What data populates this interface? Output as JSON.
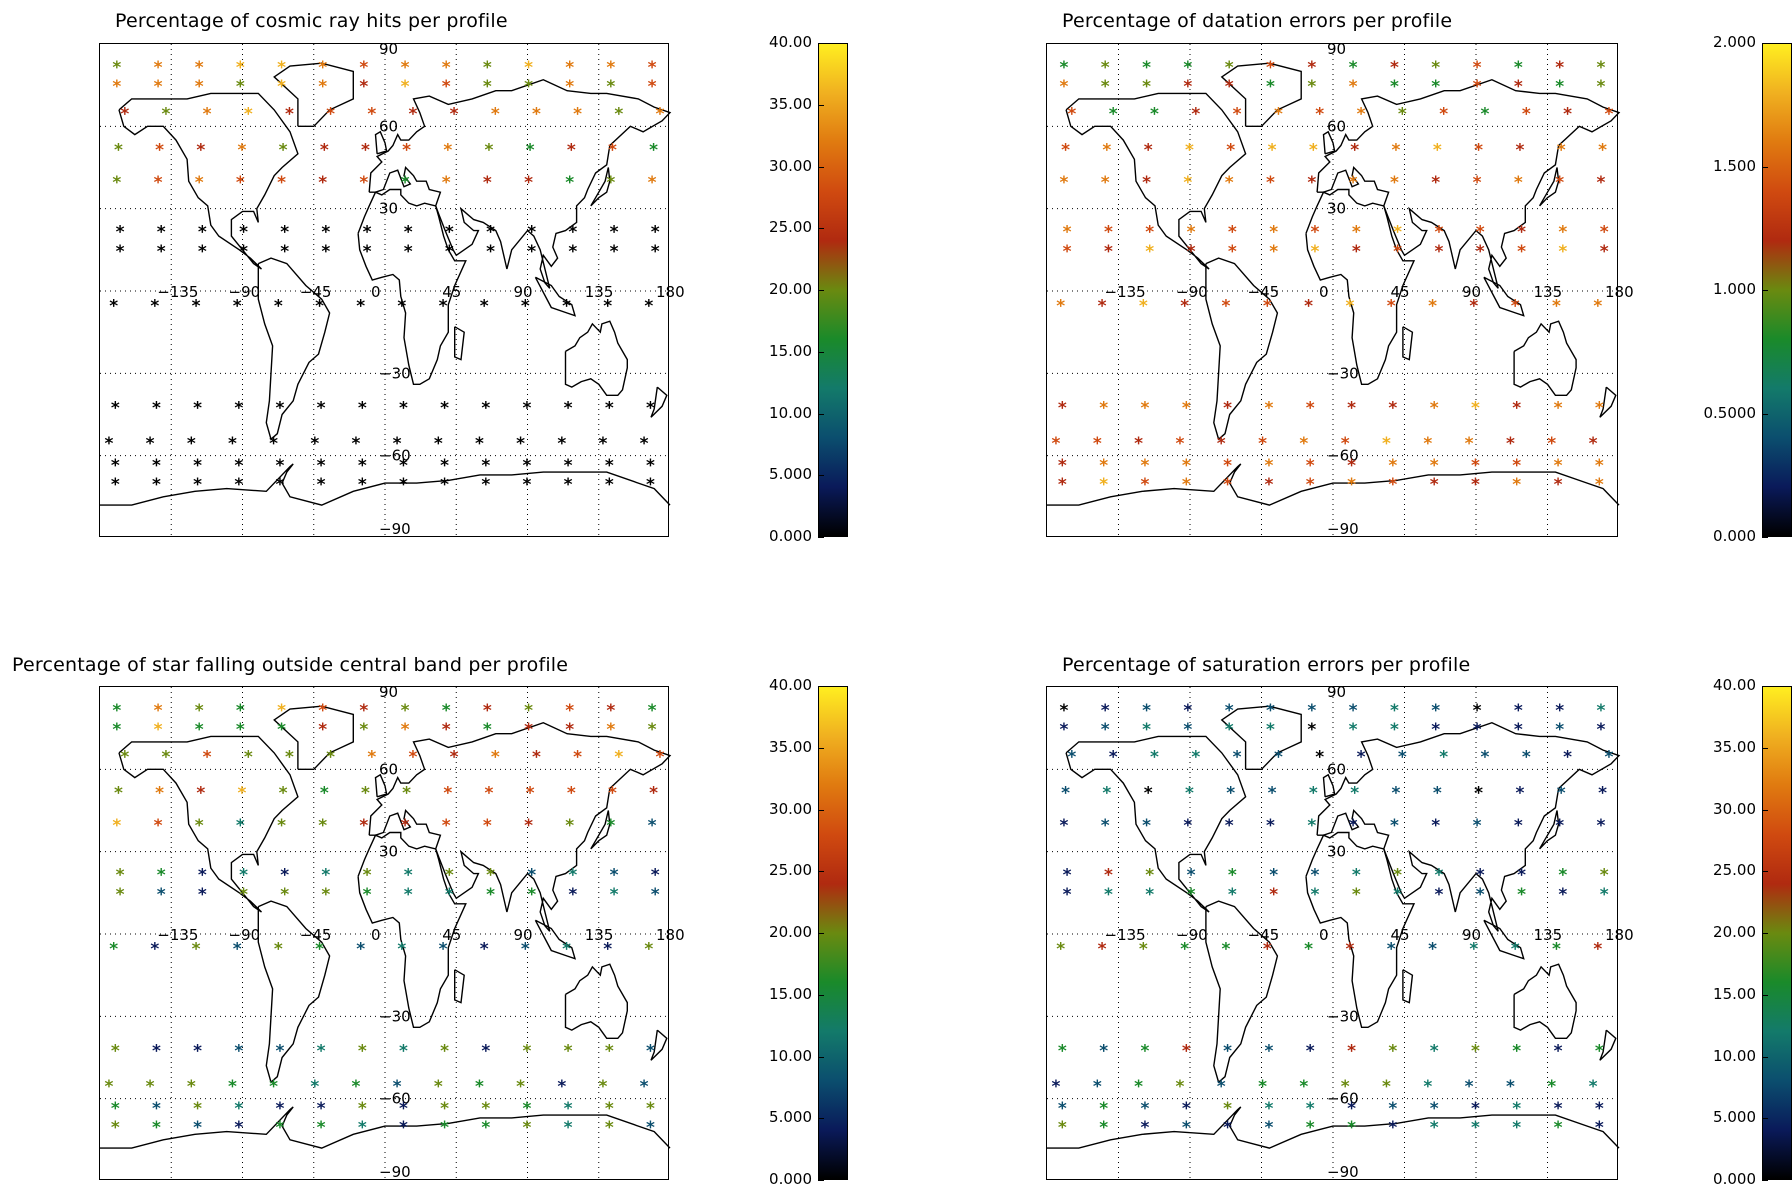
{
  "panels": [
    {
      "id": "cosmic",
      "title": "Percentage of cosmic ray hits per profile",
      "colorbar_ticks": [
        "40.00",
        "35.00",
        "30.00",
        "25.00",
        "20.00",
        "15.00",
        "10.00",
        "5.000",
        "0.000"
      ],
      "vmax": 40,
      "grid_lon_labels": [
        "−135",
        "−90",
        "−45",
        "0",
        "45",
        "90",
        "135",
        "180"
      ],
      "grid_lat_labels": [
        "90",
        "60",
        "30",
        "−30",
        "−60",
        "−90"
      ]
    },
    {
      "id": "datation",
      "title": "Percentage of datation errors per profile",
      "colorbar_ticks": [
        "2.000",
        "1.500",
        "1.000",
        "0.5000",
        "0.000"
      ],
      "vmax": 2,
      "grid_lon_labels": [
        "−135",
        "−90",
        "−45",
        "0",
        "45",
        "90",
        "135",
        "180"
      ],
      "grid_lat_labels": [
        "90",
        "60",
        "30",
        "−30",
        "−60",
        "−90"
      ]
    },
    {
      "id": "outside",
      "title": "Percentage of star falling outside central band per profile",
      "colorbar_ticks": [
        "40.00",
        "35.00",
        "30.00",
        "25.00",
        "20.00",
        "15.00",
        "10.00",
        "5.000",
        "0.000"
      ],
      "vmax": 40,
      "grid_lon_labels": [
        "−135",
        "−90",
        "−45",
        "0",
        "45",
        "90",
        "135",
        "180"
      ],
      "grid_lat_labels": [
        "90",
        "60",
        "30",
        "−30",
        "−60",
        "−90"
      ]
    },
    {
      "id": "saturation",
      "title": "Percentage of saturation errors per profile",
      "colorbar_ticks": [
        "40.00",
        "35.00",
        "30.00",
        "25.00",
        "20.00",
        "15.00",
        "10.00",
        "5.000",
        "0.000"
      ],
      "vmax": 40,
      "grid_lon_labels": [
        "−135",
        "−90",
        "−45",
        "0",
        "45",
        "90",
        "135",
        "180"
      ],
      "grid_lat_labels": [
        "90",
        "60",
        "30",
        "−30",
        "−60",
        "−90"
      ]
    }
  ],
  "colormap": [
    "#000000",
    "#0a1a5a",
    "#0b4e6e",
    "#137a6a",
    "#1a8a2a",
    "#6a8a10",
    "#b02a10",
    "#d04a10",
    "#e07a10",
    "#f0b020",
    "#ffee20"
  ]
}
